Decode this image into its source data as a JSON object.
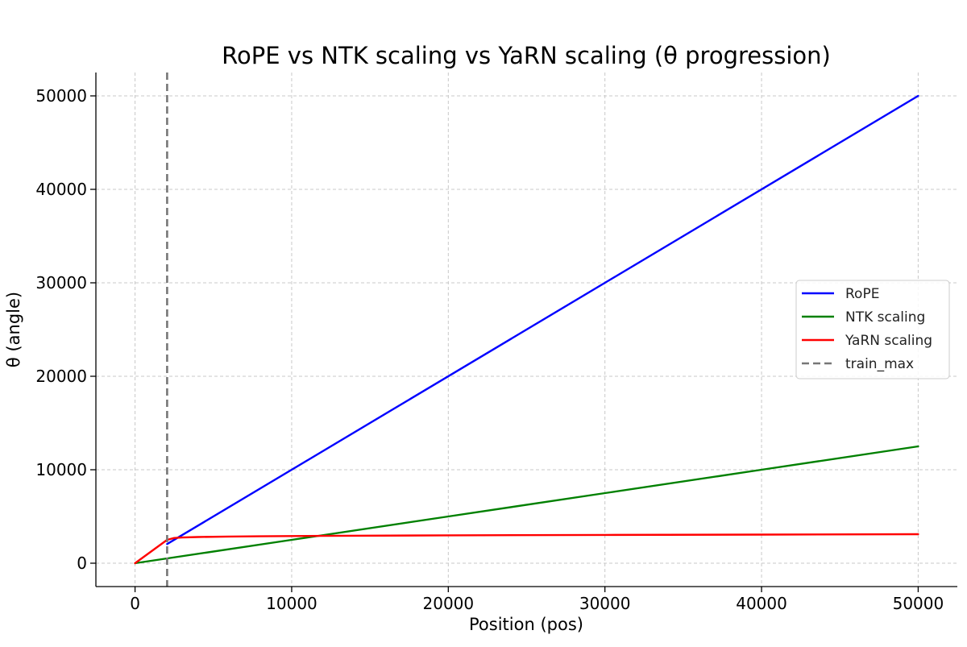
{
  "chart_data": {
    "type": "line",
    "title": "RoPE vs NTK scaling vs YaRN scaling (θ progression)",
    "xlabel": "Position (pos)",
    "ylabel": "θ (angle)",
    "xlim": [
      -2500,
      52500
    ],
    "ylim": [
      -2500,
      52500
    ],
    "xticks": [
      0,
      10000,
      20000,
      30000,
      40000,
      50000
    ],
    "yticks": [
      0,
      10000,
      20000,
      30000,
      40000,
      50000
    ],
    "grid": true,
    "legend_position": "center-right",
    "series": [
      {
        "name": "RoPE",
        "color": "#0000ff",
        "style": "solid",
        "x": [
          2048,
          50000
        ],
        "y": [
          2048,
          50000
        ]
      },
      {
        "name": "NTK scaling",
        "color": "#008000",
        "style": "solid",
        "x": [
          0,
          10000,
          20000,
          30000,
          40000,
          50000
        ],
        "y": [
          0,
          2500,
          5000,
          7500,
          10000,
          12500
        ]
      },
      {
        "name": "YaRN scaling",
        "color": "#ff0000",
        "style": "solid",
        "x": [
          0,
          2048,
          2500,
          3000,
          4000,
          6000,
          8000,
          12000,
          20000,
          30000,
          40000,
          50000
        ],
        "y": [
          0,
          2500,
          2700,
          2750,
          2800,
          2850,
          2880,
          2920,
          2980,
          3030,
          3060,
          3100
        ]
      },
      {
        "name": "train_max",
        "color": "#777777",
        "style": "dashed",
        "vline_x": 2048
      }
    ]
  }
}
